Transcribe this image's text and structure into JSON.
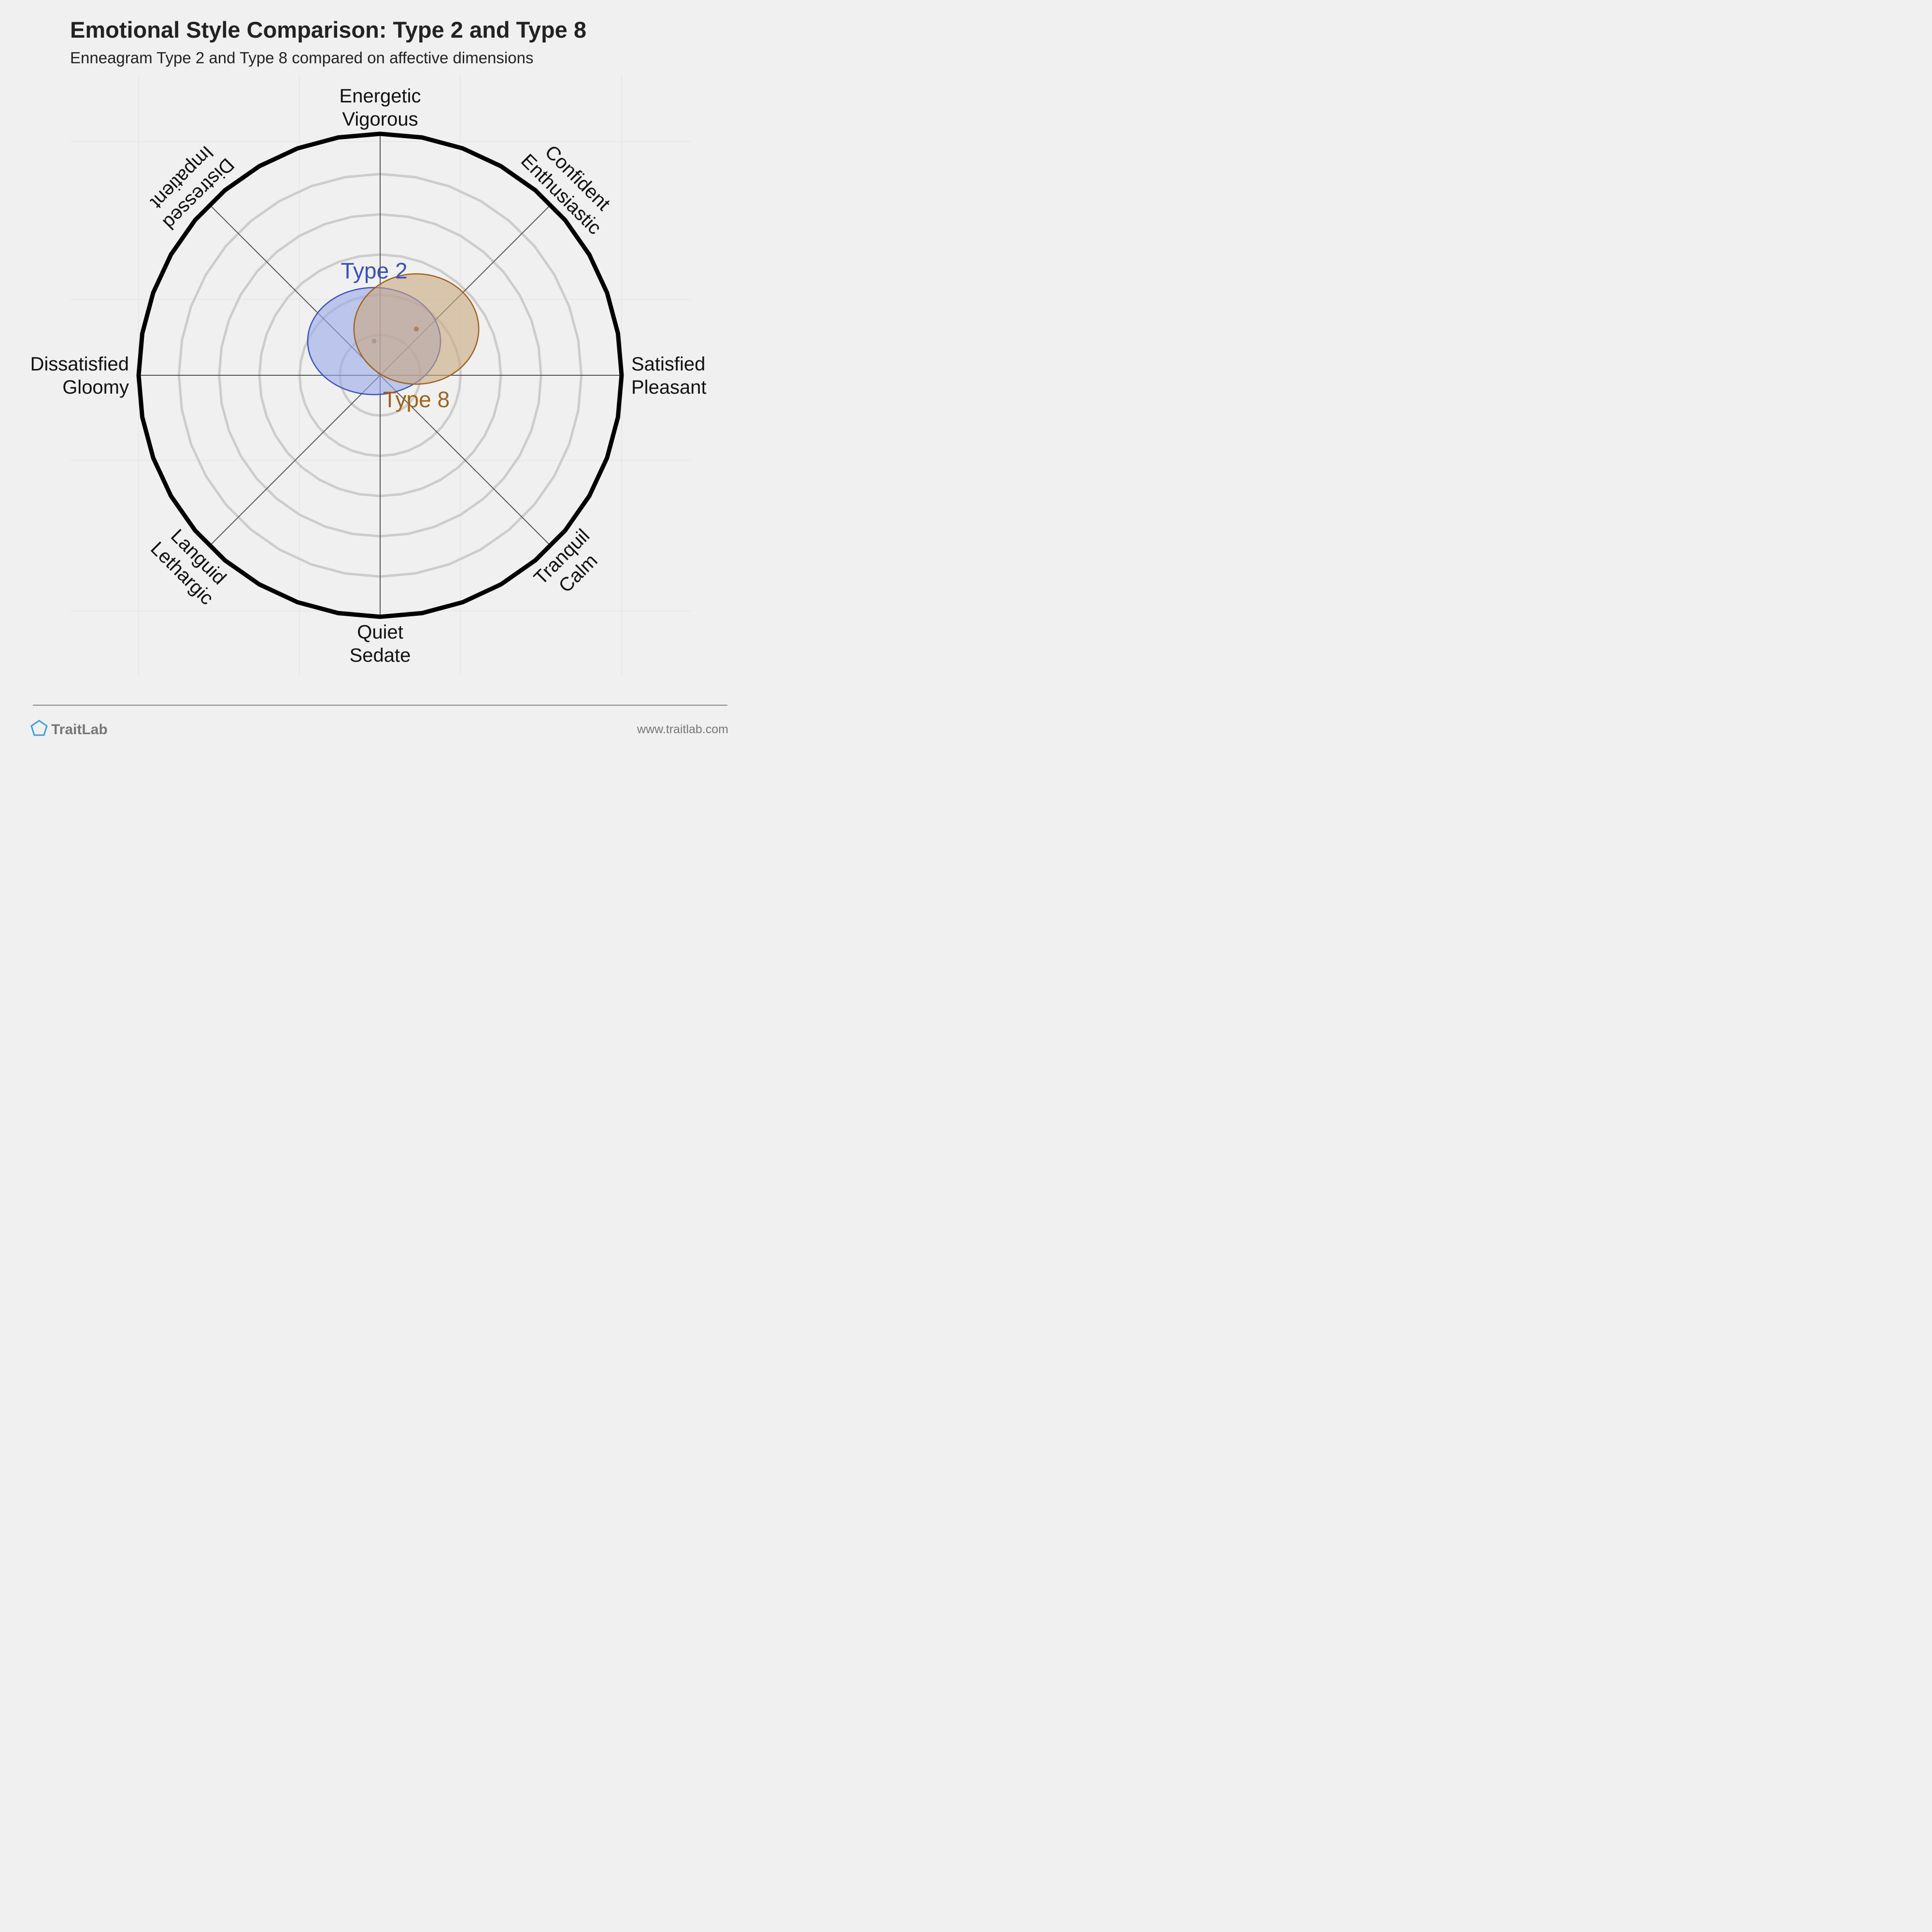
{
  "chart_data": {
    "type": "scatter",
    "title": "Emotional Style Comparison: Type 2 and Type 8",
    "subtitle": "Enneagram Type 2 and Type 8 compared on affective dimensions",
    "axes": [
      {
        "lines": [
          "Energetic",
          "Vigorous"
        ]
      },
      {
        "lines": [
          "Confident",
          "Enthusiastic"
        ]
      },
      {
        "lines": [
          "Satisfied",
          "Pleasant"
        ]
      },
      {
        "lines": [
          "Tranquil",
          "Calm"
        ]
      },
      {
        "lines": [
          "Quiet",
          "Sedate"
        ]
      },
      {
        "lines": [
          "Languid",
          "Lethargic"
        ]
      },
      {
        "lines": [
          "Dissatisfied",
          "Gloomy"
        ]
      },
      {
        "lines": [
          "Distressed",
          "Impatient"
        ]
      }
    ],
    "x_range": [
      -6,
      6
    ],
    "y_range": [
      -6,
      6
    ],
    "grid_rings": 6,
    "series": [
      {
        "name": "Type 2",
        "x": -0.15,
        "y": 0.85,
        "rx": 1.65,
        "ry": 1.33,
        "color": "#3a4fc0",
        "fill": "#9aa8e8",
        "label_x": -0.15,
        "label_y": 2.6
      },
      {
        "name": "Type 8",
        "x": 0.9,
        "y": 1.15,
        "rx": 1.55,
        "ry": 1.37,
        "color": "#a0621a",
        "fill": "#c9a67e",
        "label_x": 0.9,
        "label_y": -0.6
      }
    ]
  },
  "footer": {
    "brand": "TraitLab",
    "url": "www.traitlab.com"
  },
  "colors": {
    "background": "#f0f0f0",
    "outer_ring": "#000000",
    "grid_ring": "#cccccc",
    "axis_line": "#555555"
  }
}
